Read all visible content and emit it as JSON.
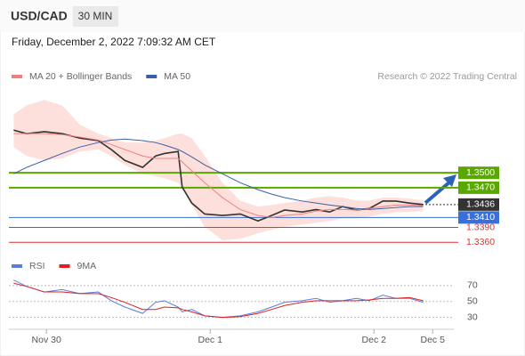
{
  "header": {
    "symbol": "USD/CAD",
    "timeframe": "30 MIN",
    "timestamp": "Friday, December 2, 2022 7:09:32 AM CET",
    "credit": "Research © 2022 Trading Central"
  },
  "chart_data": [
    {
      "type": "line",
      "x": [
        -4.8,
        -2.9,
        -0.3,
        2.3,
        4.9,
        7.6,
        9.5,
        11.5,
        14.1,
        16.0,
        17.3,
        19.3,
        19.9,
        21.3,
        23.2,
        25.8,
        28.4,
        31.0,
        33.0,
        34.9,
        37.5,
        39.5,
        41.5,
        43.4,
        45.4,
        47.3,
        49.3,
        51.2,
        53.2,
        55.2
      ],
      "xlim": [
        -5.5,
        59.7
      ],
      "xticks": [
        {
          "value": 0,
          "label": "Nov 30"
        },
        {
          "value": 24,
          "label": "Dec 1"
        },
        {
          "value": 48,
          "label": "Dec 2"
        },
        {
          "value": 56.6,
          "label": "Dec 5"
        }
      ],
      "ylim": [
        1.3346,
        1.3669
      ],
      "series": [
        {
          "color": "#333333",
          "values": [
            1.3586,
            1.3579,
            1.3583,
            1.3579,
            1.357,
            1.3565,
            1.3547,
            1.3525,
            1.3511,
            1.3534,
            1.3539,
            1.3543,
            1.3471,
            1.3439,
            1.3417,
            1.3414,
            1.3417,
            1.3403,
            1.3414,
            1.3425,
            1.3421,
            1.3426,
            1.3421,
            1.3432,
            1.3425,
            1.3428,
            1.3443,
            1.3443,
            1.3439,
            1.3436
          ]
        },
        {
          "name": "MA 20 + Bollinger Bands",
          "color": "#f08080",
          "values": [
            1.3579,
            1.3579,
            1.3579,
            1.3577,
            1.3572,
            1.3566,
            1.3557,
            1.3547,
            1.3534,
            1.3529,
            1.3529,
            1.3529,
            1.3522,
            1.3504,
            1.348,
            1.345,
            1.3426,
            1.3414,
            1.341,
            1.3414,
            1.3417,
            1.3423,
            1.3426,
            1.3426,
            1.3425,
            1.3428,
            1.3432,
            1.3435,
            1.3435,
            1.3434
          ]
        },
        {
          "name": "MA 50",
          "color": "#3a5fa8",
          "values": [
            1.3498,
            1.3511,
            1.3525,
            1.3539,
            1.3552,
            1.3561,
            1.3566,
            1.3568,
            1.3565,
            1.3561,
            1.3556,
            1.3547,
            1.3543,
            1.3532,
            1.3516,
            1.3498,
            1.348,
            1.3466,
            1.3457,
            1.345,
            1.3443,
            1.3439,
            1.3435,
            1.3432,
            1.3428,
            1.3426,
            1.3428,
            1.343,
            1.3432,
            1.3432
          ]
        }
      ],
      "band": {
        "color": "#fde0dc",
        "upper": [
          1.3618,
          1.3636,
          1.3647,
          1.3636,
          1.3597,
          1.3579,
          1.357,
          1.3561,
          1.3561,
          1.3565,
          1.357,
          1.3579,
          1.3579,
          1.357,
          1.3534,
          1.348,
          1.3444,
          1.3432,
          1.3435,
          1.3439,
          1.3444,
          1.345,
          1.3453,
          1.345,
          1.3444,
          1.3444,
          1.345,
          1.345,
          1.3448,
          1.3444
        ],
        "lower": [
          1.3552,
          1.3534,
          1.3525,
          1.3529,
          1.3543,
          1.3547,
          1.3534,
          1.3516,
          1.3498,
          1.3493,
          1.3489,
          1.348,
          1.3468,
          1.3435,
          1.3391,
          1.3364,
          1.3367,
          1.3378,
          1.3385,
          1.3391,
          1.3396,
          1.3399,
          1.3403,
          1.3408,
          1.3408,
          1.3412,
          1.3417,
          1.3421,
          1.3421,
          1.3423
        ]
      },
      "levels": [
        {
          "value": 1.35,
          "label": "1.3500",
          "color": "#5aa700",
          "boxed": true,
          "line": "thick"
        },
        {
          "value": 1.347,
          "label": "1.3470",
          "color": "#5aa700",
          "boxed": true,
          "line": "thick"
        },
        {
          "value": 1.3436,
          "label": "1.3436",
          "color": "#333333",
          "boxed": true,
          "line": "dotted"
        },
        {
          "value": 1.341,
          "label": "1.3410",
          "color": "#3a6fd8",
          "boxed": true,
          "line": "thin"
        },
        {
          "value": 1.339,
          "label": "1.3390",
          "color": "#e03030",
          "boxed": false,
          "line": "thin"
        },
        {
          "value": 1.336,
          "label": "1.3360",
          "color": "#e03030",
          "boxed": false,
          "line": "thin"
        }
      ]
    },
    {
      "type": "line",
      "x": [
        -4.8,
        -2.9,
        -0.3,
        2.3,
        4.9,
        7.6,
        9.5,
        11.5,
        14.1,
        16.0,
        17.3,
        19.3,
        19.9,
        21.3,
        23.2,
        25.8,
        28.4,
        31.0,
        33.0,
        34.9,
        37.5,
        39.5,
        41.5,
        43.4,
        45.4,
        47.3,
        49.3,
        51.2,
        53.2,
        55.2
      ],
      "xlim": [
        -5.5,
        59.7
      ],
      "ylim": [
        15,
        80
      ],
      "yticks": [
        70,
        50,
        30
      ],
      "series": [
        {
          "name": "RSI",
          "color": "#5b7be0",
          "values": [
            77,
            69,
            62,
            65,
            60,
            62,
            51,
            43,
            35,
            49,
            51,
            43,
            37,
            40,
            32,
            30,
            32,
            37,
            43,
            49,
            51,
            54,
            49,
            51,
            54,
            51,
            58,
            54,
            54,
            49
          ]
        },
        {
          "name": "9MA",
          "color": "#e02020",
          "values": [
            73,
            69,
            62,
            62,
            60,
            60,
            55,
            49,
            40,
            40,
            43,
            42,
            40,
            37,
            32,
            30,
            31,
            35,
            40,
            45,
            49,
            51,
            51,
            51,
            51,
            52,
            54,
            54,
            55,
            51
          ]
        }
      ]
    }
  ]
}
